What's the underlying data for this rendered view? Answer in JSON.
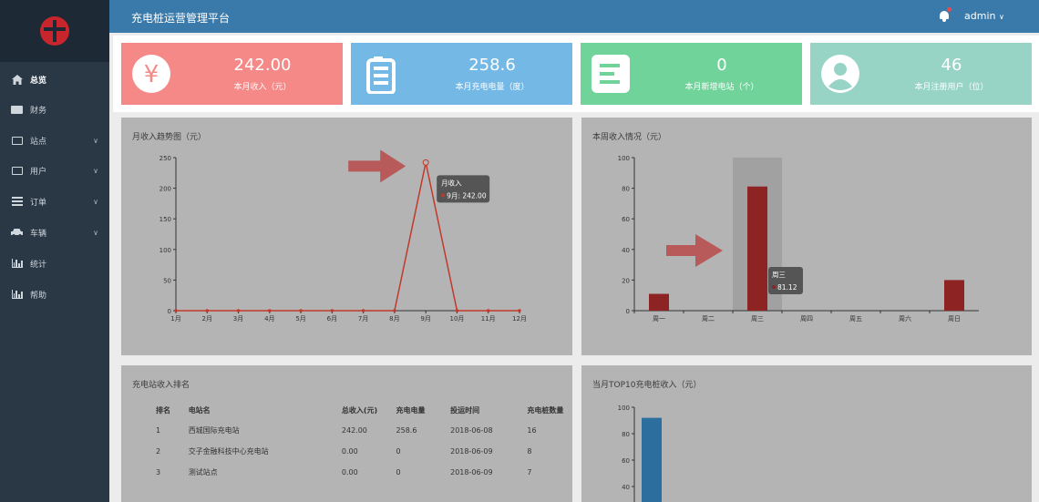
{
  "header": {
    "title": "充电桩运营管理平台",
    "user": "admin"
  },
  "sidebar": {
    "items": [
      {
        "label": "总览",
        "icon": "home-icon"
      },
      {
        "label": "财务",
        "icon": "visa-card-icon"
      },
      {
        "label": "站点",
        "icon": "monitor-icon",
        "chevron": "∨"
      },
      {
        "label": "用户",
        "icon": "id-card-icon",
        "chevron": "∨"
      },
      {
        "label": "订单",
        "icon": "list-icon",
        "chevron": "∨"
      },
      {
        "label": "车辆",
        "icon": "car-icon",
        "chevron": "∨"
      },
      {
        "label": "统计",
        "icon": "bar-chart-icon"
      },
      {
        "label": "帮助",
        "icon": "bar-chart-icon"
      }
    ]
  },
  "stats": [
    {
      "value": "242.00",
      "label": "本月收入（元）",
      "color": "#f58987",
      "icon": "yen-icon"
    },
    {
      "value": "258.6",
      "label": "本月充电电量（度）",
      "color": "#74b8e6",
      "icon": "battery-icon"
    },
    {
      "value": "0",
      "label": "本月新增电站（个）",
      "color": "#6fd39a",
      "icon": "document-icon"
    },
    {
      "value": "46",
      "label": "本月注册用户（位）",
      "color": "#98d4c6",
      "icon": "user-icon"
    }
  ],
  "panels": {
    "monthly": {
      "title": "月收入趋势图（元）"
    },
    "weekly": {
      "title": "本周收入情况（元）"
    },
    "ranking": {
      "title": "充电站收入排名"
    },
    "top10": {
      "title": "当月TOP10充电桩收入（元）"
    }
  },
  "chart_data": [
    {
      "type": "line",
      "title": "月收入趋势图（元）",
      "categories": [
        "1月",
        "2月",
        "3月",
        "4月",
        "5月",
        "6月",
        "7月",
        "8月",
        "9月",
        "10月",
        "11月",
        "12月"
      ],
      "series": [
        {
          "name": "月收入",
          "values": [
            0,
            0,
            0,
            0,
            0,
            0,
            0,
            0,
            242.0,
            0,
            0,
            0
          ]
        }
      ],
      "ylim": [
        0,
        250
      ],
      "yticks": [
        0,
        50,
        100,
        150,
        200,
        250
      ],
      "tooltip": {
        "title": "月收入",
        "text": "9月: 242.00"
      },
      "color": "#c0392b"
    },
    {
      "type": "bar",
      "title": "本周收入情况（元）",
      "categories": [
        "周一",
        "周二",
        "周三",
        "周四",
        "周五",
        "周六",
        "周日"
      ],
      "values": [
        11,
        0,
        81.12,
        0,
        0,
        0,
        20
      ],
      "ylim": [
        0,
        100
      ],
      "yticks": [
        0,
        20,
        40,
        60,
        80,
        100
      ],
      "highlight_index": 2,
      "tooltip": {
        "title": "周三",
        "text": "81.12"
      },
      "color": "#8e2323"
    },
    {
      "type": "bar",
      "title": "当月TOP10充电桩收入（元）",
      "values": [
        92
      ],
      "ylim": [
        40,
        100
      ],
      "yticks": [
        40,
        60,
        80,
        100
      ],
      "color": "#2c6f9e"
    }
  ],
  "ranking": {
    "columns": [
      "排名",
      "电站名",
      "总收入(元)",
      "充电电量",
      "投运时间",
      "充电桩数量"
    ],
    "rows": [
      [
        "1",
        "西城国际充电站",
        "242.00",
        "258.6",
        "2018-06-08",
        "16"
      ],
      [
        "2",
        "交子金融科技中心充电站",
        "0.00",
        "0",
        "2018-06-09",
        "8"
      ],
      [
        "3",
        "测试站点",
        "0.00",
        "0",
        "2018-06-09",
        "7"
      ]
    ]
  }
}
